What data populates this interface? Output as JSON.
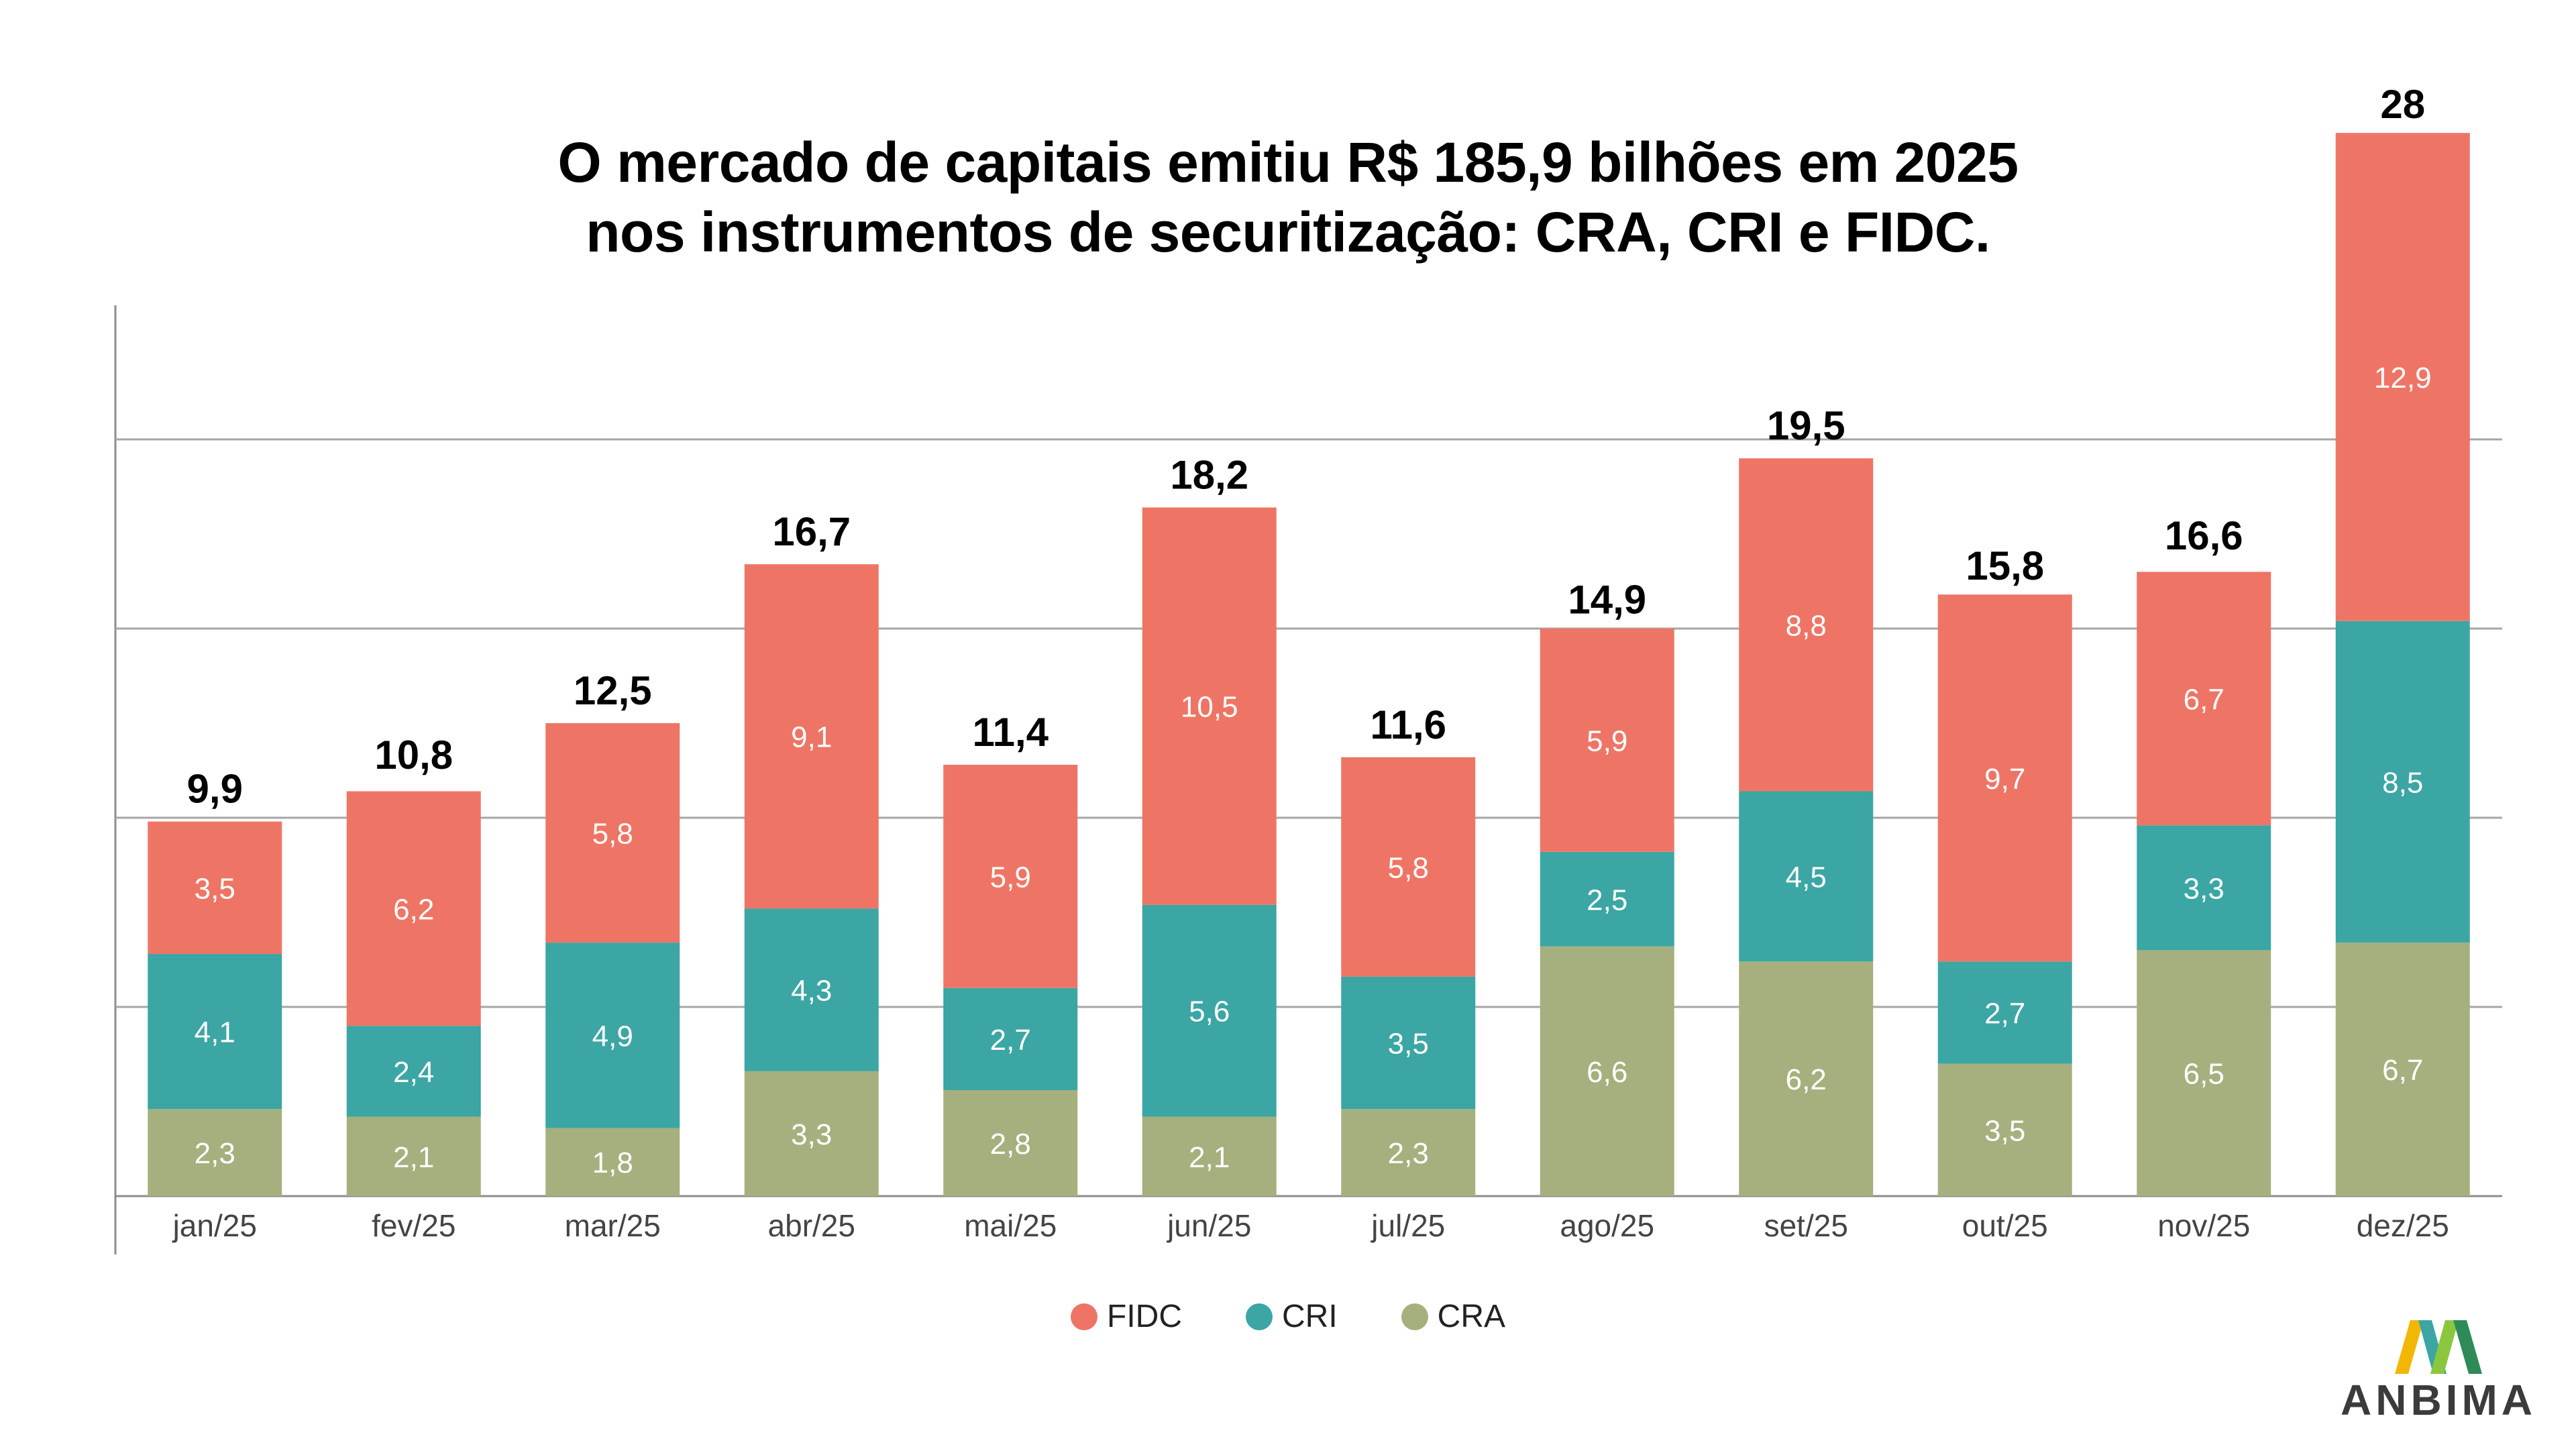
{
  "title": {
    "line1": "O mercado de capitais emitiu R$ 185,9 bilhões em 2025",
    "line2": "nos instrumentos de securitização: CRA, CRI e FIDC."
  },
  "colors": {
    "FIDC": "#ee7565",
    "CRI": "#3ba6a3",
    "CRA": "#a5b07e"
  },
  "chart_data": {
    "type": "bar",
    "stacked": true,
    "title": "O mercado de capitais emitiu R$ 185,9 bilhões em 2025 nos instrumentos de securitização: CRA, CRI e FIDC.",
    "xlabel": "",
    "ylabel": "",
    "ylim": [
      0,
      30
    ],
    "grid": true,
    "gridlines": [
      5,
      10,
      15,
      20
    ],
    "legend_position": "bottom",
    "categories": [
      "jan/25",
      "fev/25",
      "mar/25",
      "abr/25",
      "mai/25",
      "jun/25",
      "jul/25",
      "ago/25",
      "set/25",
      "out/25",
      "nov/25",
      "dez/25"
    ],
    "series": [
      {
        "name": "CRA",
        "values": [
          2.3,
          2.1,
          1.8,
          3.3,
          2.8,
          2.1,
          2.3,
          6.6,
          6.2,
          3.5,
          6.5,
          6.7
        ],
        "labels": [
          "2,3",
          "2,1",
          "1,8",
          "3,3",
          "2,8",
          "2,1",
          "2,3",
          "6,6",
          "6,2",
          "3,5",
          "6,5",
          "6,7"
        ]
      },
      {
        "name": "CRI",
        "values": [
          4.1,
          2.4,
          4.9,
          4.3,
          2.7,
          5.6,
          3.5,
          2.5,
          4.5,
          2.7,
          3.3,
          8.5
        ],
        "labels": [
          "4,1",
          "2,4",
          "4,9",
          "4,3",
          "2,7",
          "5,6",
          "3,5",
          "2,5",
          "4,5",
          "2,7",
          "3,3",
          "8,5"
        ]
      },
      {
        "name": "FIDC",
        "values": [
          3.5,
          6.2,
          5.8,
          9.1,
          5.9,
          10.5,
          5.8,
          5.9,
          8.8,
          9.7,
          6.7,
          12.9
        ],
        "labels": [
          "3,5",
          "6,2",
          "5,8",
          "9,1",
          "5,9",
          "10,5",
          "5,8",
          "5,9",
          "8,8",
          "9,7",
          "6,7",
          "12,9"
        ]
      }
    ],
    "totals": [
      9.9,
      10.8,
      12.5,
      16.7,
      11.4,
      18.2,
      11.6,
      14.9,
      19.5,
      15.8,
      16.6,
      28
    ],
    "total_labels": [
      "9,9",
      "10,8",
      "12,5",
      "16,7",
      "11,4",
      "18,2",
      "11,6",
      "14,9",
      "19,5",
      "15,8",
      "16,6",
      "28"
    ]
  },
  "legend": [
    {
      "name": "FIDC",
      "color": "#ee7565"
    },
    {
      "name": "CRI",
      "color": "#3ba6a3"
    },
    {
      "name": "CRA",
      "color": "#a5b07e"
    }
  ],
  "logo": {
    "text": "ANBIMA"
  }
}
